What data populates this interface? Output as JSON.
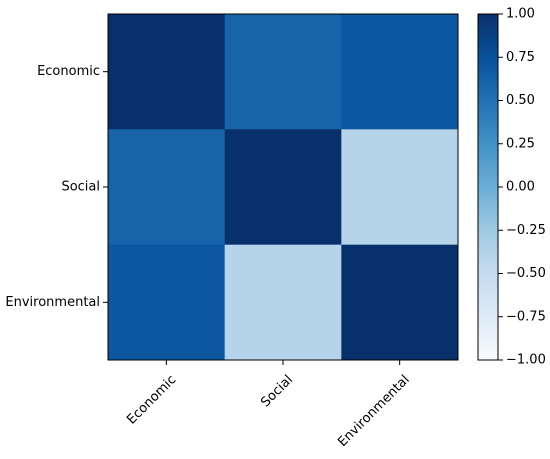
{
  "chart_data": {
    "type": "heatmap",
    "title": "",
    "xlabel": "",
    "ylabel": "",
    "x_categories": [
      "Economic",
      "Social",
      "Environmental"
    ],
    "y_categories": [
      "Economic",
      "Social",
      "Environmental"
    ],
    "values": [
      [
        1.0,
        0.6,
        0.7
      ],
      [
        0.6,
        1.0,
        -0.4
      ],
      [
        0.7,
        -0.4,
        1.0
      ]
    ],
    "colormap": "Blues",
    "color_range": [
      -1.0,
      1.0
    ],
    "colorbar": {
      "ticks": [
        1.0,
        0.75,
        0.5,
        0.25,
        0.0,
        -0.25,
        -0.5,
        -0.75,
        -1.0
      ],
      "tick_labels": [
        "1.00",
        "0.75",
        "0.50",
        "0.25",
        "0.00",
        "−0.25",
        "−0.50",
        "−0.75",
        "−1.00"
      ],
      "position": "right"
    },
    "grid": false
  }
}
